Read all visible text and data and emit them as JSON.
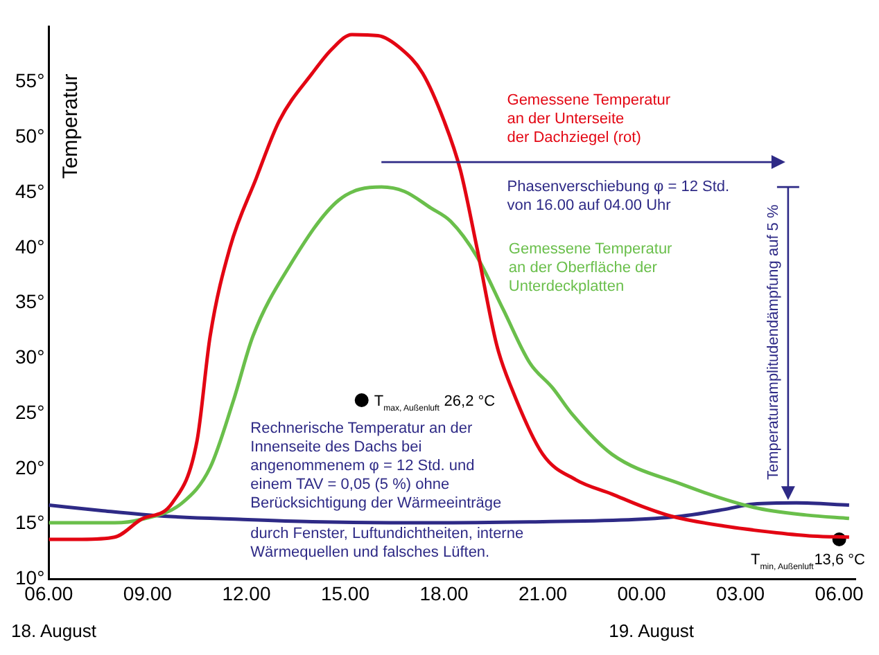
{
  "chart_data": {
    "type": "line",
    "ylabel": "Temperatur",
    "xlim": [
      "--08-18T06:00",
      "--08-19T06:30"
    ],
    "ylim": [
      10,
      60
    ],
    "xticks": [
      {
        "value": "--08-18T06:00",
        "label": "06.00"
      },
      {
        "value": "--08-18T09:00",
        "label": "09.00"
      },
      {
        "value": "--08-18T12:00",
        "label": "12.00"
      },
      {
        "value": "--08-18T15:00",
        "label": "15.00"
      },
      {
        "value": "--08-18T18:00",
        "label": "18.00"
      },
      {
        "value": "--08-18T21:00",
        "label": "21.00"
      },
      {
        "value": "--08-19T00:00",
        "label": "00.00"
      },
      {
        "value": "--08-19T03:00",
        "label": "03.00"
      },
      {
        "value": "--08-19T06:00",
        "label": "06.00"
      }
    ],
    "yticks": [
      {
        "value": 10,
        "label": "10°"
      },
      {
        "value": 15,
        "label": "15°"
      },
      {
        "value": 20,
        "label": "20°"
      },
      {
        "value": 25,
        "label": "25°"
      },
      {
        "value": 30,
        "label": "30°"
      },
      {
        "value": 35,
        "label": "35°"
      },
      {
        "value": 40,
        "label": "40°"
      },
      {
        "value": 45,
        "label": "45°"
      },
      {
        "value": 50,
        "label": "50°"
      },
      {
        "value": 55,
        "label": "55°"
      }
    ],
    "grid": false,
    "legend": false,
    "marker": "none",
    "line_style": "solid",
    "series": [
      {
        "color": "#e30613",
        "x": [
          "--08-18T06:00",
          "--08-18T07:00",
          "--08-18T08:00",
          "--08-18T08:48",
          "--08-18T09:45",
          "--08-18T10:30",
          "--08-18T10:54",
          "--08-18T11:30",
          "--08-18T12:18",
          "--08-18T13:00",
          "--08-18T14:00",
          "--08-18T14:36",
          "--08-18T15:12",
          "--08-18T16:00",
          "--08-18T16:42",
          "--08-18T17:21",
          "--08-18T18:00",
          "--08-18T18:30",
          "--08-18T19:00",
          "--08-18T19:36",
          "--08-18T20:03",
          "--08-18T21:00",
          "--08-18T22:00",
          "--08-18T23:06",
          "--08-19T00:00",
          "--08-19T00:54",
          "--08-19T02:30",
          "--08-19T04:06",
          "--08-19T05:12",
          "--08-19T06:18"
        ],
        "values": [
          13.6,
          13.6,
          13.8,
          15.4,
          16.9,
          22.5,
          32,
          40,
          46.3,
          51.5,
          55.8,
          58,
          59.3,
          59.2,
          58,
          55.8,
          51.5,
          47,
          40,
          31.2,
          27.3,
          21.3,
          19,
          17.7,
          16.6,
          15.7,
          14.8,
          14.2,
          13.9,
          13.8
        ]
      },
      {
        "color": "#6abf4b",
        "x": [
          "--08-18T06:00",
          "--08-18T07:00",
          "--08-18T08:00",
          "--08-18T08:48",
          "--08-18T10:03",
          "--08-18T10:54",
          "--08-18T11:36",
          "--08-18T12:12",
          "--08-18T13:18",
          "--08-18T14:48",
          "--08-18T16:06",
          "--08-18T16:48",
          "--08-18T17:36",
          "--08-18T18:12",
          "--08-18T19:00",
          "--08-18T19:48",
          "--08-18T20:36",
          "--08-18T21:18",
          "--08-18T21:54",
          "--08-18T23:06",
          "--08-19T01:12",
          "--08-19T03:24",
          "--08-19T05:00",
          "--08-19T06:18"
        ],
        "values": [
          15.1,
          15.1,
          15.1,
          15.4,
          16.9,
          20.1,
          26.1,
          32,
          38.3,
          44.3,
          45.5,
          45.1,
          43.6,
          42.4,
          39.2,
          34.4,
          29.6,
          27.3,
          24.9,
          21.3,
          18.6,
          16.5,
          15.8,
          15.5
        ]
      },
      {
        "color": "#2e2a86",
        "x": [
          "--08-18T06:00",
          "--08-18T07:36",
          "--08-18T09:30",
          "--08-18T11:54",
          "--08-18T14:00",
          "--08-18T17:36",
          "--08-18T21:00",
          "--08-18T23:48",
          "--08-19T01:12",
          "--08-19T02:30",
          "--08-19T03:24",
          "--08-19T04:42",
          "--08-19T06:18"
        ],
        "values": [
          16.7,
          16.2,
          15.7,
          15.4,
          15.2,
          15.1,
          15.2,
          15.4,
          15.7,
          16.3,
          16.8,
          16.9,
          16.7
        ]
      },
      {
        "type": "scatter",
        "marker": "circle",
        "color": "#000000",
        "x": [
          "--08-18T15:30",
          "--08-19T06:00"
        ],
        "values": [
          26.2,
          13.6
        ]
      }
    ],
    "annotations": [
      "Gemessene Temperatur\nan der Unterseite\nder Dachziegel (rot)",
      "Phasenverschiebung φ = 12 Std.\nvon 16.00 auf 04.00 Uhr",
      "Gemessene Temperatur\nan der Oberfläche der\nUnterdeckplatten",
      "Temperaturamplitudendämpfung auf 5 %",
      "Rechnerische Temperatur an der\nInnenseite des Dachs bei\nangenommenem φ = 12 Std. und\neinem TAV = 0,05 (5 %) ohne\nBerücksichtigung der Wärmeeinträge",
      "durch Fenster, Luftundichtheiten, interne\nWärmequellen und falsches Lüften.",
      {
        "text": "T$_{max, Außenluft}$ 26,2 °C",
        "x": "--08-18T15:30",
        "y": 26.2
      },
      {
        "text": "T$_{min, Außenluft}$13,6 °C",
        "x": "--08-19T06:00",
        "y": 13.6
      },
      "18. August",
      "19. August"
    ]
  }
}
